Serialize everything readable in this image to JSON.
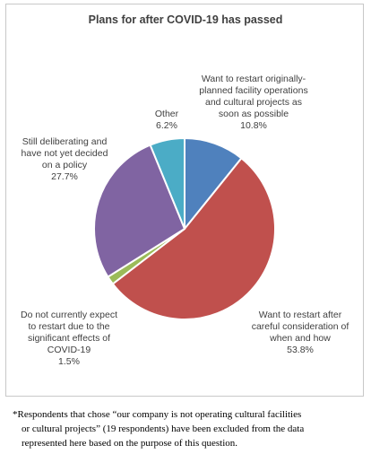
{
  "chart_data": {
    "type": "pie",
    "title": "Plans for after COVID-19 has passed",
    "slices": [
      {
        "name": "Want to restart originally-planned facility operations and cultural projects as soon as possible",
        "label_lines": [
          "Want to restart originally-",
          "planned facility operations",
          "and cultural projects as",
          "soon as possible"
        ],
        "value": 10.8,
        "value_label": "10.8%",
        "color": "#4f81bd"
      },
      {
        "name": "Want to restart after careful consideration of when and how",
        "label_lines": [
          "Want to restart after",
          "careful consideration of",
          "when and how"
        ],
        "value": 53.8,
        "value_label": "53.8%",
        "color": "#c0504d"
      },
      {
        "name": "Do not currently expect to restart due to the significant effects of COVID-19",
        "label_lines": [
          "Do not currently expect",
          "to restart due to the",
          "significant effects of",
          "COVID-19"
        ],
        "value": 1.5,
        "value_label": "1.5%",
        "color": "#9bbb59"
      },
      {
        "name": "Still deliberating and have not yet decided on a policy",
        "label_lines": [
          "Still deliberating and",
          "have not yet decided",
          "on a policy"
        ],
        "value": 27.7,
        "value_label": "27.7%",
        "color": "#8064a2"
      },
      {
        "name": "Other",
        "label_lines": [
          "Other"
        ],
        "value": 6.2,
        "value_label": "6.2%",
        "color": "#4bacc6"
      }
    ]
  },
  "footnote": {
    "lines": [
      "*Respondents that chose “our company is not operating cultural facilities",
      "or cultural projects” (19 respondents) have been excluded from the data",
      "represented here based on the purpose of this question."
    ]
  }
}
